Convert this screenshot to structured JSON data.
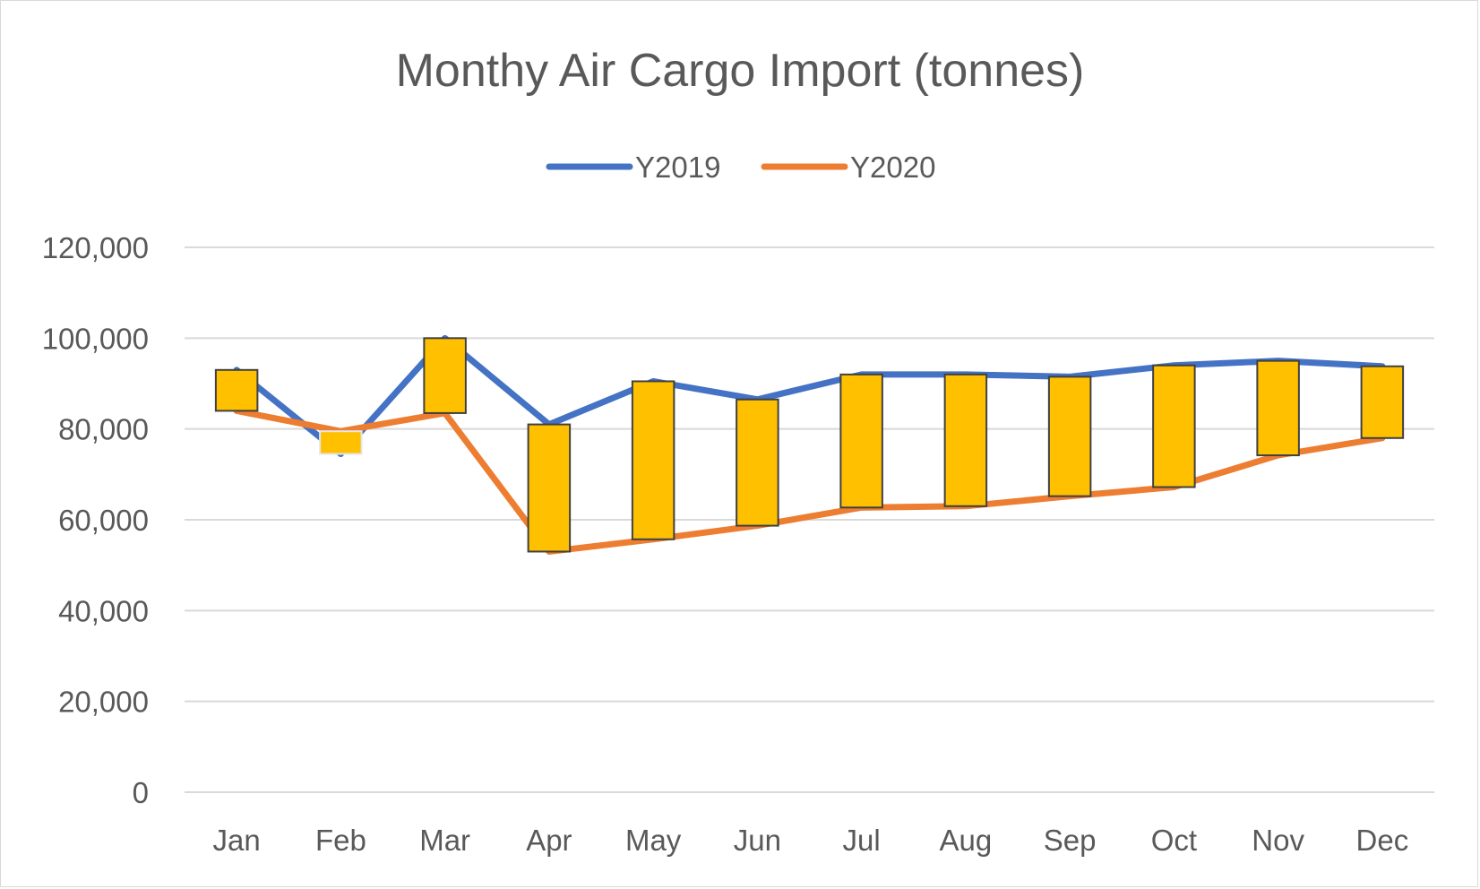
{
  "chart_data": {
    "type": "line",
    "title": "Monthy Air Cargo Import (tonnes)",
    "xlabel": "",
    "ylabel": "",
    "categories": [
      "Jan",
      "Feb",
      "Mar",
      "Apr",
      "May",
      "Jun",
      "Jul",
      "Aug",
      "Sep",
      "Oct",
      "Nov",
      "Dec"
    ],
    "series": [
      {
        "name": "Y2019",
        "color": "#4472C4",
        "values": [
          93000,
          74500,
          100000,
          81000,
          90500,
          86500,
          92000,
          92000,
          91500,
          94000,
          95000,
          93800
        ]
      },
      {
        "name": "Y2020",
        "color": "#ED7D31",
        "values": [
          84000,
          79500,
          83500,
          53000,
          55700,
          58700,
          62700,
          63000,
          65200,
          67200,
          74200,
          78000
        ]
      }
    ],
    "up_down_bars": {
      "color": "#FFC000",
      "border": "#404040"
    },
    "y_ticks": [
      "0",
      "20,000",
      "40,000",
      "60,000",
      "80,000",
      "100,000",
      "120,000"
    ],
    "y_tick_values": [
      0,
      20000,
      40000,
      60000,
      80000,
      100000,
      120000
    ],
    "ylim": [
      0,
      120000
    ],
    "grid": true,
    "legend_position": "top-center"
  }
}
